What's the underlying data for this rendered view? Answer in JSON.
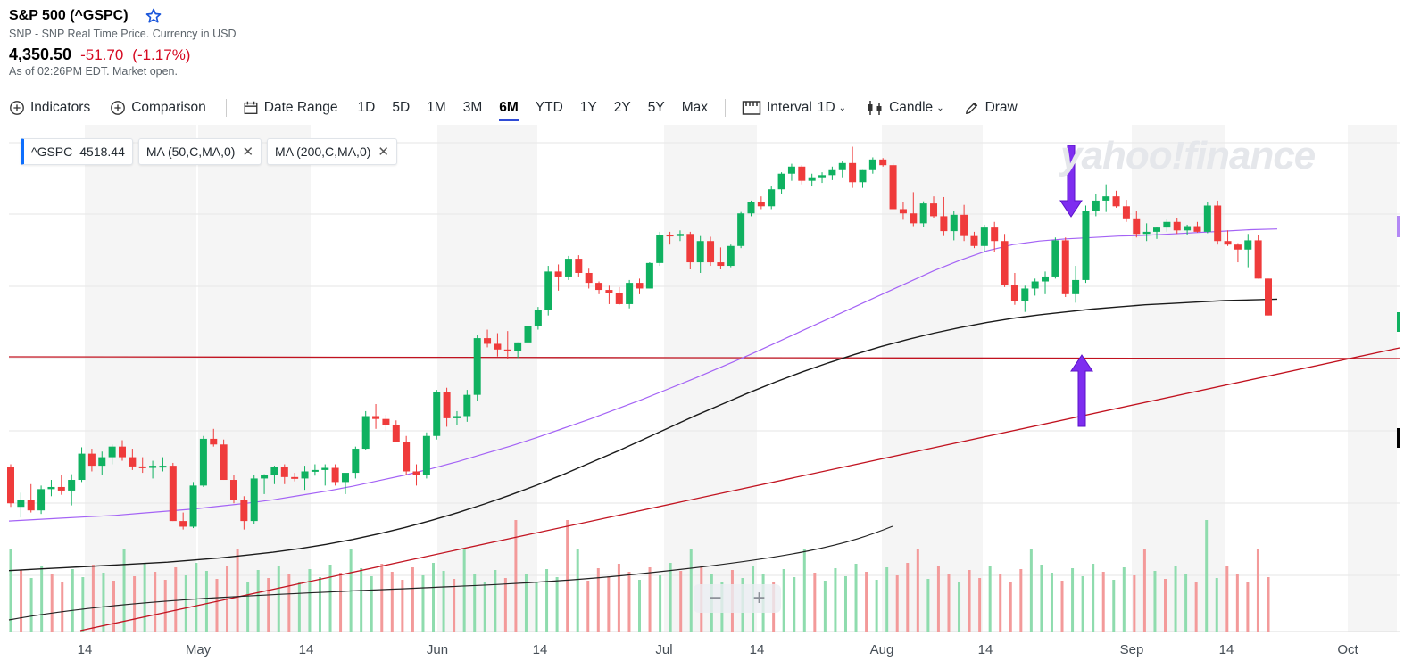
{
  "header": {
    "title": "S&P 500 (^GSPC)",
    "subtitle": "SNP - SNP Real Time Price. Currency in USD",
    "price": "4,350.50",
    "change": "-51.70",
    "change_pct": "(-1.17%)",
    "as_of": "As of 02:26PM EDT. Market open."
  },
  "toolbar": {
    "indicators": "Indicators",
    "comparison": "Comparison",
    "date_range": "Date Range",
    "ranges": [
      "1D",
      "5D",
      "1M",
      "3M",
      "6M",
      "YTD",
      "1Y",
      "2Y",
      "5Y",
      "Max"
    ],
    "active_range": "6M",
    "interval_label": "Interval",
    "interval_value": "1D",
    "chart_type": "Candle",
    "draw": "Draw"
  },
  "legend": {
    "symbol": "^GSPC",
    "symbol_value": "4518.44",
    "ma50": "MA (50,C,MA,0)",
    "ma200": "MA (200,C,MA,0)"
  },
  "watermark": "yahoo!finance",
  "zoom": {
    "minus": "−",
    "plus": "+"
  },
  "colors": {
    "up": "#0fb160",
    "down": "#ef3b3b",
    "ma50": "#a463f5",
    "ma200": "#1a1a1a",
    "trend": "#c1121f",
    "arrow": "#7e2df0"
  },
  "chart_data": {
    "type": "candlestick",
    "x_tick_labels": [
      "14",
      "May",
      "14",
      "Jun",
      "14",
      "Jul",
      "14",
      "Aug",
      "14",
      "Sep",
      "14",
      "Oct"
    ],
    "candles_ohlc": [
      [
        4136,
        4140,
        4080,
        4085
      ],
      [
        4080,
        4100,
        4065,
        4090
      ],
      [
        4090,
        4112,
        4072,
        4075
      ],
      [
        4075,
        4110,
        4070,
        4105
      ],
      [
        4105,
        4118,
        4095,
        4108
      ],
      [
        4108,
        4125,
        4097,
        4103
      ],
      [
        4103,
        4126,
        4082,
        4118
      ],
      [
        4118,
        4164,
        4115,
        4155
      ],
      [
        4155,
        4162,
        4130,
        4138
      ],
      [
        4138,
        4158,
        4125,
        4150
      ],
      [
        4150,
        4168,
        4140,
        4165
      ],
      [
        4165,
        4174,
        4145,
        4150
      ],
      [
        4150,
        4162,
        4132,
        4137
      ],
      [
        4137,
        4150,
        4128,
        4135
      ],
      [
        4135,
        4145,
        4120,
        4138
      ],
      [
        4138,
        4150,
        4130,
        4138
      ],
      [
        4138,
        4142,
        4060,
        4060
      ],
      [
        4060,
        4072,
        4048,
        4052
      ],
      [
        4052,
        4115,
        4050,
        4110
      ],
      [
        4110,
        4180,
        4108,
        4176
      ],
      [
        4176,
        4190,
        4165,
        4168
      ],
      [
        4168,
        4175,
        4118,
        4118
      ],
      [
        4118,
        4125,
        4085,
        4090
      ],
      [
        4090,
        4095,
        4048,
        4060
      ],
      [
        4060,
        4125,
        4056,
        4120
      ],
      [
        4120,
        4126,
        4098,
        4125
      ],
      [
        4125,
        4138,
        4112,
        4136
      ],
      [
        4136,
        4140,
        4112,
        4122
      ],
      [
        4122,
        4128,
        4116,
        4120
      ],
      [
        4120,
        4138,
        4104,
        4130
      ],
      [
        4130,
        4140,
        4124,
        4132
      ],
      [
        4132,
        4140,
        4110,
        4135
      ],
      [
        4135,
        4140,
        4110,
        4115
      ],
      [
        4115,
        4125,
        4098,
        4128
      ],
      [
        4128,
        4165,
        4120,
        4162
      ],
      [
        4162,
        4215,
        4160,
        4208
      ],
      [
        4208,
        4225,
        4190,
        4204
      ],
      [
        4204,
        4210,
        4188,
        4195
      ],
      [
        4195,
        4202,
        4172,
        4172
      ],
      [
        4172,
        4180,
        4125,
        4130
      ],
      [
        4130,
        4140,
        4110,
        4125
      ],
      [
        4125,
        4185,
        4120,
        4180
      ],
      [
        4180,
        4245,
        4175,
        4242
      ],
      [
        4242,
        4248,
        4193,
        4205
      ],
      [
        4205,
        4215,
        4196,
        4208
      ],
      [
        4208,
        4245,
        4200,
        4238
      ],
      [
        4238,
        4322,
        4230,
        4318
      ],
      [
        4318,
        4330,
        4305,
        4310
      ],
      [
        4310,
        4325,
        4292,
        4302
      ],
      [
        4302,
        4328,
        4289,
        4300
      ],
      [
        4300,
        4312,
        4290,
        4312
      ],
      [
        4312,
        4340,
        4300,
        4335
      ],
      [
        4335,
        4362,
        4330,
        4358
      ],
      [
        4358,
        4420,
        4350,
        4412
      ],
      [
        4412,
        4422,
        4385,
        4405
      ],
      [
        4405,
        4434,
        4400,
        4430
      ],
      [
        4430,
        4435,
        4405,
        4410
      ],
      [
        4410,
        4416,
        4388,
        4396
      ],
      [
        4396,
        4398,
        4380,
        4386
      ],
      [
        4386,
        4392,
        4366,
        4382
      ],
      [
        4382,
        4390,
        4365,
        4366
      ],
      [
        4366,
        4400,
        4360,
        4396
      ],
      [
        4396,
        4402,
        4380,
        4388
      ],
      [
        4388,
        4425,
        4388,
        4424
      ],
      [
        4424,
        4468,
        4420,
        4464
      ],
      [
        4464,
        4468,
        4450,
        4462
      ],
      [
        4462,
        4470,
        4455,
        4465
      ],
      [
        4465,
        4468,
        4415,
        4425
      ],
      [
        4425,
        4462,
        4410,
        4455
      ],
      [
        4455,
        4461,
        4420,
        4425
      ],
      [
        4425,
        4446,
        4415,
        4420
      ],
      [
        4420,
        4450,
        4418,
        4448
      ],
      [
        4448,
        4496,
        4445,
        4494
      ],
      [
        4494,
        4512,
        4490,
        4510
      ],
      [
        4510,
        4518,
        4500,
        4504
      ],
      [
        4504,
        4532,
        4500,
        4528
      ],
      [
        4528,
        4552,
        4522,
        4550
      ],
      [
        4550,
        4564,
        4540,
        4560
      ],
      [
        4560,
        4562,
        4535,
        4540
      ],
      [
        4540,
        4550,
        4532,
        4545
      ],
      [
        4545,
        4552,
        4537,
        4548
      ],
      [
        4548,
        4560,
        4541,
        4555
      ],
      [
        4555,
        4568,
        4545,
        4565
      ],
      [
        4565,
        4588,
        4530,
        4538
      ],
      [
        4538,
        4555,
        4530,
        4555
      ],
      [
        4555,
        4573,
        4550,
        4570
      ],
      [
        4570,
        4572,
        4560,
        4562
      ],
      [
        4562,
        4565,
        4500,
        4500
      ],
      [
        4500,
        4510,
        4485,
        4494
      ],
      [
        4494,
        4524,
        4476,
        4480
      ],
      [
        4480,
        4511,
        4475,
        4508
      ],
      [
        4508,
        4518,
        4488,
        4490
      ],
      [
        4490,
        4517,
        4462,
        4469
      ],
      [
        4469,
        4497,
        4456,
        4492
      ],
      [
        4492,
        4506,
        4455,
        4462
      ],
      [
        4462,
        4468,
        4445,
        4448
      ],
      [
        4448,
        4478,
        4440,
        4474
      ],
      [
        4474,
        4482,
        4440,
        4455
      ],
      [
        4455,
        4465,
        4390,
        4393
      ],
      [
        4393,
        4410,
        4365,
        4370
      ],
      [
        4370,
        4392,
        4355,
        4388
      ],
      [
        4388,
        4402,
        4378,
        4398
      ],
      [
        4398,
        4412,
        4380,
        4405
      ],
      [
        4405,
        4460,
        4402,
        4456
      ],
      [
        4456,
        4460,
        4376,
        4380
      ],
      [
        4380,
        4420,
        4368,
        4400
      ],
      [
        4400,
        4505,
        4396,
        4497
      ],
      [
        4497,
        4522,
        4490,
        4512
      ],
      [
        4512,
        4535,
        4496,
        4518
      ],
      [
        4518,
        4526,
        4502,
        4504
      ],
      [
        4504,
        4513,
        4482,
        4487
      ],
      [
        4487,
        4498,
        4460,
        4465
      ],
      [
        4465,
        4480,
        4455,
        4468
      ],
      [
        4468,
        4475,
        4458,
        4474
      ],
      [
        4474,
        4486,
        4468,
        4482
      ],
      [
        4482,
        4488,
        4465,
        4470
      ],
      [
        4470,
        4478,
        4463,
        4476
      ],
      [
        4476,
        4482,
        4467,
        4468
      ],
      [
        4468,
        4510,
        4466,
        4505
      ],
      [
        4505,
        4512,
        4450,
        4455
      ],
      [
        4455,
        4470,
        4448,
        4450
      ],
      [
        4450,
        4452,
        4425,
        4443
      ],
      [
        4443,
        4465,
        4418,
        4456
      ],
      [
        4456,
        4464,
        4402,
        4402
      ],
      [
        4402,
        4402,
        4350,
        4350
      ]
    ],
    "ma50": [
      4060,
      4062,
      4064,
      4066,
      4068,
      4071,
      4074,
      4077,
      4081,
      4085,
      4090,
      4096,
      4102,
      4109,
      4117,
      4125,
      4134,
      4144,
      4155,
      4166,
      4178,
      4191,
      4204,
      4218,
      4232,
      4247,
      4262,
      4278,
      4294,
      4311,
      4328,
      4345,
      4362,
      4379,
      4396,
      4413,
      4428,
      4441,
      4450,
      4455,
      4458,
      4460,
      4462,
      4463,
      4465,
      4467,
      4469,
      4471,
      4472
    ],
    "ma200": [
      3990,
      3992,
      3994,
      3996,
      3998,
      4000,
      4002,
      4005,
      4008,
      4012,
      4016,
      4021,
      4027,
      4034,
      4042,
      4051,
      4061,
      4072,
      4084,
      4097,
      4111,
      4126,
      4142,
      4158,
      4175,
      4192,
      4209,
      4225,
      4241,
      4256,
      4270,
      4283,
      4295,
      4306,
      4316,
      4325,
      4333,
      4340,
      4346,
      4351,
      4355,
      4359,
      4362,
      4365,
      4367,
      4369,
      4371,
      4372,
      4373
    ],
    "volume_bars": [
      "g",
      "r",
      "g",
      "g",
      "r",
      "r",
      "g",
      "g",
      "r",
      "g",
      "r",
      "g",
      "r",
      "g",
      "r",
      "r",
      "r",
      "g",
      "g",
      "g",
      "r",
      "r",
      "r",
      "g",
      "g",
      "r",
      "g",
      "r",
      "g",
      "g",
      "g",
      "g",
      "r",
      "g",
      "g",
      "g",
      "r",
      "r",
      "r",
      "r",
      "g",
      "g",
      "g",
      "r",
      "g",
      "g",
      "g",
      "g",
      "r",
      "r",
      "g",
      "g",
      "g",
      "g",
      "r",
      "g",
      "r",
      "r",
      "r",
      "r",
      "r",
      "g",
      "r",
      "g",
      "g",
      "r",
      "g",
      "r",
      "g",
      "g",
      "r",
      "g",
      "g",
      "g",
      "r",
      "g",
      "g",
      "g",
      "r",
      "g",
      "g",
      "g",
      "g",
      "r",
      "g",
      "g",
      "r",
      "r",
      "r",
      "g",
      "r",
      "r",
      "g",
      "r",
      "r",
      "g",
      "r",
      "r",
      "r",
      "g",
      "g",
      "g",
      "r",
      "g",
      "g",
      "g",
      "r",
      "g",
      "g",
      "r",
      "r",
      "g",
      "r",
      "g",
      "g",
      "r",
      "g",
      "g",
      "r",
      "r",
      "r",
      "r",
      "r"
    ]
  }
}
